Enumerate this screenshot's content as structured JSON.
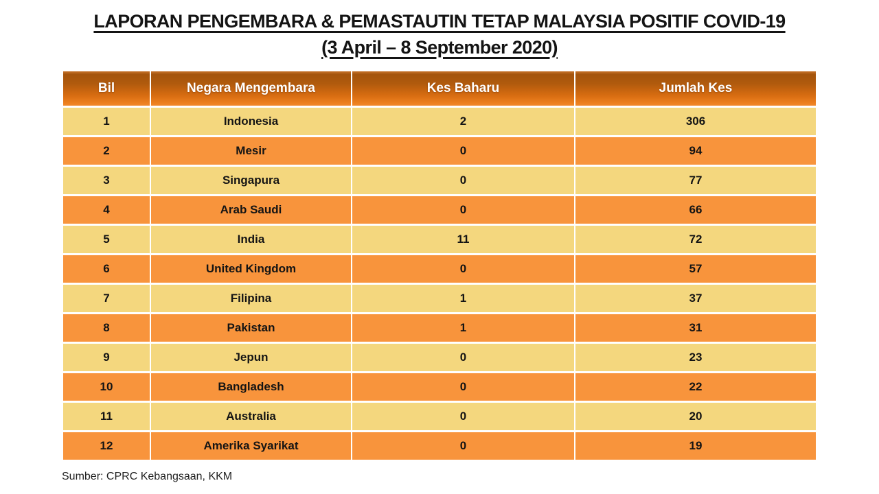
{
  "title": {
    "line1": "LAPORAN PENGEMBARA & PEMASTAUTIN TETAP MALAYSIA POSITIF COVID-19",
    "line2": "(3 April – 8 September 2020)"
  },
  "chart_data": {
    "type": "table",
    "title": "LAPORAN PENGEMBARA & PEMASTAUTIN TETAP MALAYSIA POSITIF COVID-19 (3 April – 8 September 2020)",
    "columns": [
      "Bil",
      "Negara Mengembara",
      "Kes Baharu",
      "Jumlah Kes"
    ],
    "rows": [
      [
        "1",
        "Indonesia",
        "2",
        "306"
      ],
      [
        "2",
        "Mesir",
        "0",
        "94"
      ],
      [
        "3",
        "Singapura",
        "0",
        "77"
      ],
      [
        "4",
        "Arab Saudi",
        "0",
        "66"
      ],
      [
        "5",
        "India",
        "11",
        "72"
      ],
      [
        "6",
        "United Kingdom",
        "0",
        "57"
      ],
      [
        "7",
        "Filipina",
        "1",
        "37"
      ],
      [
        "8",
        "Pakistan",
        "1",
        "31"
      ],
      [
        "9",
        "Jepun",
        "0",
        "23"
      ],
      [
        "10",
        "Bangladesh",
        "0",
        "22"
      ],
      [
        "11",
        "Australia",
        "0",
        "20"
      ],
      [
        "12",
        "Amerika Syarikat",
        "0",
        "19"
      ]
    ]
  },
  "footer": {
    "source": "Sumber: CPRC Kebangsaan, KKM"
  },
  "colors": {
    "header_gradient_top": "#A4540C",
    "header_gradient_bottom": "#F0882B",
    "header_text": "#FFFFFF",
    "row_light": "#F4D77E",
    "row_dark": "#F8943C",
    "cell_text": "#141414",
    "title_text": "#141414"
  }
}
